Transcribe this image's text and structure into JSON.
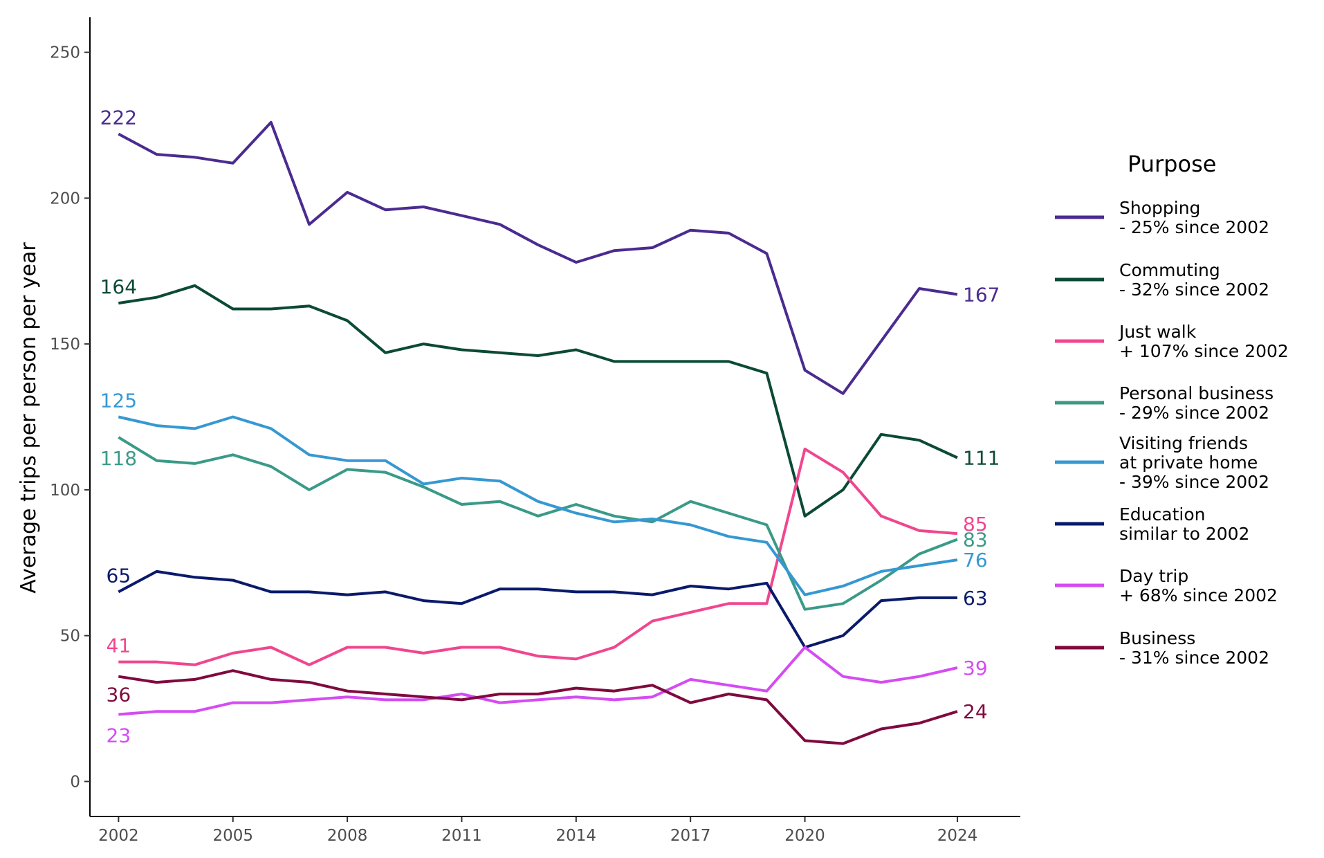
{
  "chart_data": {
    "type": "line",
    "ylabel": "Average trips per person per year",
    "xlabel": "",
    "ylim": [
      -12,
      262
    ],
    "xlim": [
      2001.25,
      2025.65
    ],
    "x_ticks": [
      2002,
      2005,
      2008,
      2011,
      2014,
      2017,
      2020,
      2024
    ],
    "y_ticks": [
      0,
      50,
      100,
      150,
      200,
      250
    ],
    "grid": false,
    "legend": {
      "title": "Purpose",
      "placement": "right"
    },
    "x": [
      2002,
      2003,
      2004,
      2005,
      2006,
      2007,
      2008,
      2009,
      2010,
      2011,
      2012,
      2013,
      2014,
      2015,
      2016,
      2017,
      2018,
      2019,
      2020,
      2021,
      2022,
      2023,
      2024
    ],
    "series": [
      {
        "name": "Shopping",
        "legend_lines": [
          "Shopping",
          "- 25% since 2002"
        ],
        "color": "#4B2B90",
        "values": [
          222,
          215,
          214,
          212,
          226,
          191,
          202,
          196,
          197,
          194,
          191,
          184,
          178,
          182,
          183,
          189,
          188,
          181,
          141,
          133,
          151,
          169,
          167
        ],
        "start_label": "222",
        "end_label": "167"
      },
      {
        "name": "Commuting",
        "legend_lines": [
          "Commuting",
          "- 32% since 2002"
        ],
        "color": "#0B4A36",
        "values": [
          164,
          166,
          170,
          162,
          162,
          163,
          158,
          147,
          150,
          148,
          147,
          146,
          148,
          144,
          144,
          144,
          144,
          140,
          91,
          100,
          119,
          117,
          111
        ],
        "start_label": "164",
        "end_label": "111"
      },
      {
        "name": "Just walk",
        "legend_lines": [
          "Just walk",
          "+ 107% since 2002"
        ],
        "color": "#F0468F",
        "values": [
          41,
          41,
          40,
          44,
          46,
          40,
          46,
          46,
          44,
          46,
          46,
          43,
          42,
          46,
          55,
          58,
          61,
          61,
          114,
          106,
          91,
          86,
          85
        ],
        "start_label": "41",
        "end_label": "85"
      },
      {
        "name": "Personal business",
        "legend_lines": [
          "Personal business",
          "- 29% since 2002"
        ],
        "color": "#3A9A87",
        "values": [
          118,
          110,
          109,
          112,
          108,
          100,
          107,
          106,
          101,
          95,
          96,
          91,
          95,
          91,
          89,
          96,
          92,
          88,
          59,
          61,
          69,
          78,
          83
        ],
        "start_label": "118",
        "end_label": "83"
      },
      {
        "name": "Visiting friends at private home",
        "legend_lines": [
          "Visiting friends",
          "at private home",
          "- 39% since 2002"
        ],
        "color": "#3698D2",
        "values": [
          125,
          122,
          121,
          125,
          121,
          112,
          110,
          110,
          102,
          104,
          103,
          96,
          92,
          89,
          90,
          88,
          84,
          82,
          64,
          67,
          72,
          74,
          76
        ],
        "start_label": "125",
        "end_label": "76"
      },
      {
        "name": "Education",
        "legend_lines": [
          "Education",
          "similar to 2002"
        ],
        "color": "#0A1A6B",
        "values": [
          65,
          72,
          70,
          69,
          65,
          65,
          64,
          65,
          62,
          61,
          66,
          66,
          65,
          65,
          64,
          67,
          66,
          68,
          46,
          50,
          62,
          63,
          63
        ],
        "start_label": "65",
        "end_label": "63"
      },
      {
        "name": "Day trip",
        "legend_lines": [
          "Day trip",
          "+ 68% since 2002"
        ],
        "color": "#D44CF2",
        "values": [
          23,
          24,
          24,
          27,
          27,
          28,
          29,
          28,
          28,
          30,
          27,
          28,
          29,
          28,
          29,
          35,
          33,
          31,
          46,
          36,
          34,
          36,
          39
        ],
        "start_label": "23",
        "end_label": "39"
      },
      {
        "name": "Business",
        "legend_lines": [
          "Business",
          "- 31% since 2002"
        ],
        "color": "#7F0A3E",
        "values": [
          36,
          34,
          35,
          38,
          35,
          34,
          31,
          30,
          29,
          28,
          30,
          30,
          32,
          31,
          33,
          27,
          30,
          28,
          14,
          13,
          18,
          20,
          24
        ],
        "start_label": "36",
        "end_label": "24"
      }
    ]
  }
}
